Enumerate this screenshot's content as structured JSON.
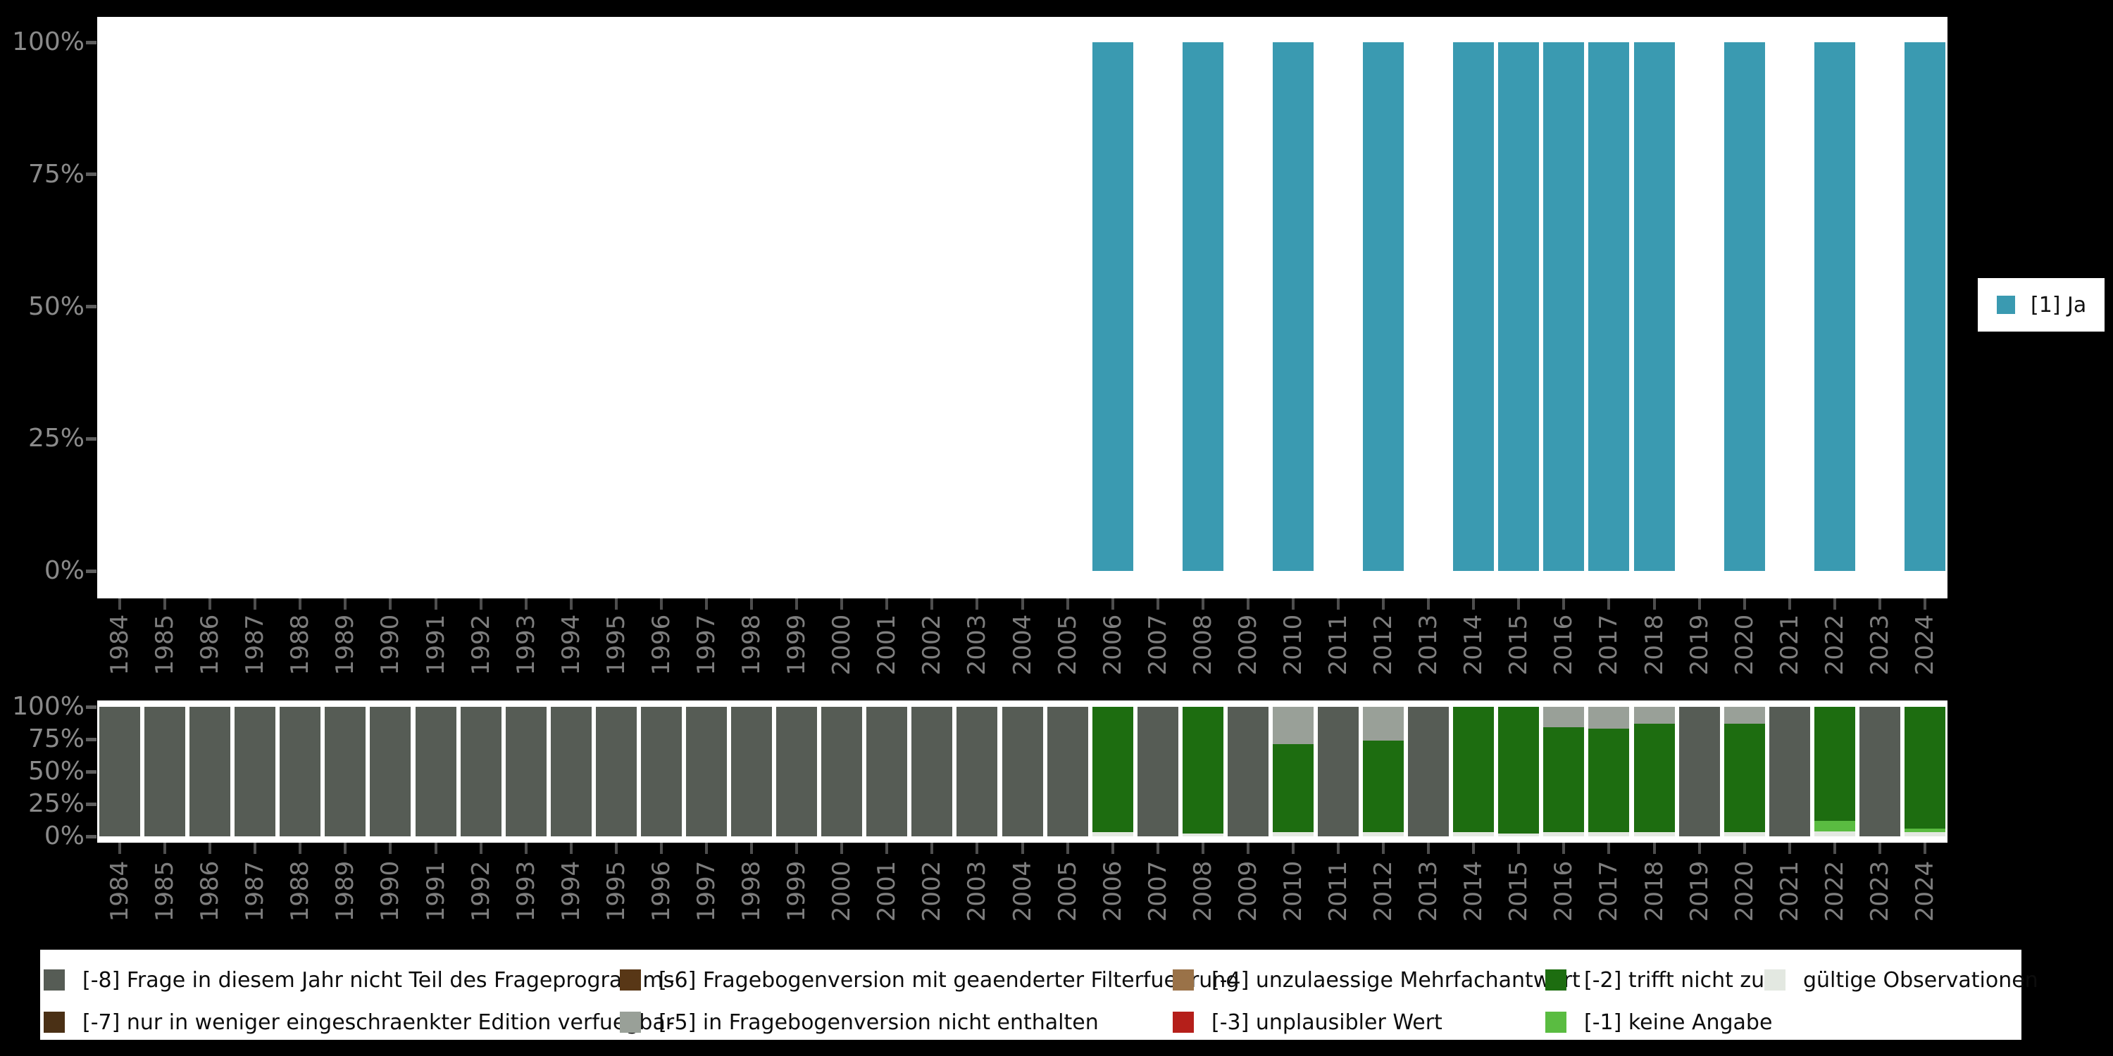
{
  "page": {
    "background": "#000000"
  },
  "colors": {
    "ja": "#3a9ab1",
    "-8": "#565c55",
    "-7": "#4a3015",
    "-6": "#583716",
    "-5": "#99a098",
    "-4": "#9a7248",
    "-3": "#b51f1a",
    "-2": "#1d6d10",
    "-1": "#5abc41",
    "valid": "#e3e8e1"
  },
  "series_legend": {
    "label": "[1] Ja",
    "color": "#3a9ab1"
  },
  "y_tick_labels": [
    "100%",
    "75%",
    "50%",
    "25%",
    "0%"
  ],
  "legend": {
    "items": [
      {
        "label": "[-8] Frage in diesem Jahr nicht Teil des Frageprogramms",
        "key": "-8",
        "color": "#565c55",
        "col": 0,
        "row": 0
      },
      {
        "label": "[-7] nur in weniger eingeschraenkter Edition verfuegbar",
        "key": "-7",
        "color": "#4a3015",
        "col": 0,
        "row": 1
      },
      {
        "label": "[-6] Fragebogenversion mit geaenderter Filterfuehrung",
        "key": "-6",
        "color": "#583716",
        "col": 1,
        "row": 0
      },
      {
        "label": "[-5] in Fragebogenversion nicht enthalten",
        "key": "-5",
        "color": "#99a098",
        "col": 1,
        "row": 1
      },
      {
        "label": "[-4] unzulaessige Mehrfachantwort",
        "key": "-4",
        "color": "#9a7248",
        "col": 2,
        "row": 0
      },
      {
        "label": "[-3] unplausibler Wert",
        "key": "-3",
        "color": "#b51f1a",
        "col": 2,
        "row": 1
      },
      {
        "label": "[-2] trifft nicht zu",
        "key": "-2",
        "color": "#1d6d10",
        "col": 3,
        "row": 0
      },
      {
        "label": "[-1] keine Angabe",
        "key": "-1",
        "color": "#5abc41",
        "col": 3,
        "row": 1
      },
      {
        "label": "gültige Observationen",
        "key": "valid",
        "color": "#e3e8e1",
        "col": 4,
        "row": 0
      }
    ]
  },
  "chart_data": [
    {
      "type": "bar",
      "title": "",
      "xlabel": "",
      "ylabel": "",
      "ylim": [
        0,
        100
      ],
      "grid": false,
      "legend_position": "right",
      "y_tick_labels": [
        "0%",
        "25%",
        "50%",
        "75%",
        "100%"
      ],
      "categories": [
        "1984",
        "1985",
        "1986",
        "1987",
        "1988",
        "1989",
        "1990",
        "1991",
        "1992",
        "1993",
        "1994",
        "1995",
        "1996",
        "1997",
        "1998",
        "1999",
        "2000",
        "2001",
        "2002",
        "2003",
        "2004",
        "2005",
        "2006",
        "2007",
        "2008",
        "2009",
        "2010",
        "2011",
        "2012",
        "2013",
        "2014",
        "2015",
        "2016",
        "2017",
        "2018",
        "2019",
        "2020",
        "2021",
        "2022",
        "2023",
        "2024"
      ],
      "series": [
        {
          "name": "[1] Ja",
          "color": "#3a9ab1",
          "values": [
            null,
            null,
            null,
            null,
            null,
            null,
            null,
            null,
            null,
            null,
            null,
            null,
            null,
            null,
            null,
            null,
            null,
            null,
            null,
            null,
            null,
            null,
            100,
            null,
            100,
            null,
            100,
            null,
            100,
            null,
            100,
            100,
            100,
            100,
            100,
            null,
            100,
            null,
            100,
            null,
            100
          ]
        }
      ]
    },
    {
      "type": "bar",
      "stacked": true,
      "title": "",
      "xlabel": "",
      "ylabel": "",
      "ylim": [
        0,
        100
      ],
      "grid": false,
      "legend_position": "bottom",
      "y_tick_labels": [
        "0%",
        "25%",
        "50%",
        "75%",
        "100%"
      ],
      "stack_order_bottom_to_top": [
        "valid",
        "-1",
        "-2",
        "-3",
        "-4",
        "-5",
        "-6",
        "-7",
        "-8"
      ],
      "categories": [
        "1984",
        "1985",
        "1986",
        "1987",
        "1988",
        "1989",
        "1990",
        "1991",
        "1992",
        "1993",
        "1994",
        "1995",
        "1996",
        "1997",
        "1998",
        "1999",
        "2000",
        "2001",
        "2002",
        "2003",
        "2004",
        "2005",
        "2006",
        "2007",
        "2008",
        "2009",
        "2010",
        "2011",
        "2012",
        "2013",
        "2014",
        "2015",
        "2016",
        "2017",
        "2018",
        "2019",
        "2020",
        "2021",
        "2022",
        "2023",
        "2024"
      ],
      "series": [
        {
          "key": "-8",
          "name": "[-8] Frage in diesem Jahr nicht Teil des Frageprogramms",
          "color": "#565c55",
          "values": [
            100,
            100,
            100,
            100,
            100,
            100,
            100,
            100,
            100,
            100,
            100,
            100,
            100,
            100,
            100,
            100,
            100,
            100,
            100,
            100,
            100,
            100,
            0,
            100,
            0,
            100,
            0,
            100,
            0,
            100,
            0,
            0,
            0,
            0,
            0,
            100,
            0,
            100,
            0,
            100,
            0
          ]
        },
        {
          "key": "-5",
          "name": "[-5] in Fragebogenversion nicht enthalten",
          "color": "#99a098",
          "values": [
            0,
            0,
            0,
            0,
            0,
            0,
            0,
            0,
            0,
            0,
            0,
            0,
            0,
            0,
            0,
            0,
            0,
            0,
            0,
            0,
            0,
            0,
            0,
            0,
            0,
            0,
            29,
            0,
            26,
            0,
            0,
            0,
            16,
            17,
            13,
            0,
            13,
            0,
            0,
            0,
            0
          ]
        },
        {
          "key": "-2",
          "name": "[-2] trifft nicht zu",
          "color": "#1d6d10",
          "values": [
            0,
            0,
            0,
            0,
            0,
            0,
            0,
            0,
            0,
            0,
            0,
            0,
            0,
            0,
            0,
            0,
            0,
            0,
            0,
            0,
            0,
            0,
            97,
            0,
            98,
            0,
            68,
            0,
            71,
            0,
            97,
            98,
            81,
            80,
            84,
            0,
            84,
            0,
            88,
            0,
            94
          ]
        },
        {
          "key": "-1",
          "name": "[-1] keine Angabe",
          "color": "#5abc41",
          "values": [
            0,
            0,
            0,
            0,
            0,
            0,
            0,
            0,
            0,
            0,
            0,
            0,
            0,
            0,
            0,
            0,
            0,
            0,
            0,
            0,
            0,
            0,
            0,
            0,
            0,
            0,
            0,
            0,
            0,
            0,
            0,
            0,
            0,
            0,
            0,
            0,
            0,
            0,
            8,
            0,
            3
          ]
        },
        {
          "key": "valid",
          "name": "gültige Observationen",
          "color": "#e3e8e1",
          "values": [
            0,
            0,
            0,
            0,
            0,
            0,
            0,
            0,
            0,
            0,
            0,
            0,
            0,
            0,
            0,
            0,
            0,
            0,
            0,
            0,
            0,
            0,
            3,
            0,
            2,
            0,
            3,
            0,
            3,
            0,
            3,
            2,
            3,
            3,
            3,
            0,
            3,
            0,
            4,
            0,
            3
          ]
        }
      ]
    }
  ]
}
